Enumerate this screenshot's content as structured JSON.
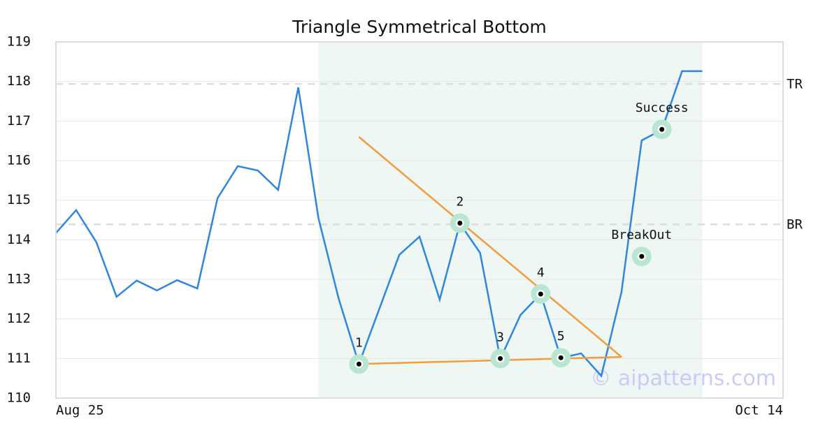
{
  "chart_data": {
    "type": "line",
    "title": "Triangle Symmetrical Bottom",
    "x": [
      0,
      1,
      2,
      3,
      4,
      5,
      6,
      7,
      8,
      9,
      10,
      11,
      12,
      13,
      14,
      15,
      16,
      17,
      18,
      19,
      20,
      21,
      22,
      23,
      24,
      25,
      26,
      27,
      28,
      29,
      30,
      31,
      32
    ],
    "series": [
      {
        "color": "#2e86de",
        "values": [
          114.17,
          114.75,
          113.94,
          112.56,
          112.97,
          112.72,
          112.98,
          112.77,
          115.05,
          115.86,
          115.75,
          115.26,
          117.85,
          114.54,
          112.51,
          110.86,
          112.24,
          113.62,
          114.08,
          112.49,
          114.41,
          113.67,
          110.99,
          112.1,
          112.63,
          111.01,
          111.13,
          110.56,
          112.68,
          116.51,
          116.78,
          118.26,
          118.26
        ]
      }
    ],
    "xlim": [
      0,
      36
    ],
    "xticks": [
      {
        "value": 0,
        "label": "Aug 25"
      },
      {
        "value": 36,
        "label": "Oct 14"
      }
    ],
    "ylim": [
      110,
      119
    ],
    "yticks": [
      110,
      111,
      112,
      113,
      114,
      115,
      116,
      117,
      118,
      119
    ],
    "grid": true,
    "shaded_region": {
      "x": [
        13,
        32
      ],
      "color": "#eef7f3"
    },
    "levels": [
      {
        "label": "TR",
        "value": 117.94
      },
      {
        "label": "BR",
        "value": 114.39
      }
    ],
    "trend_lines": [
      {
        "color": "#f39c3d",
        "x": [
          15,
          28
        ],
        "y": [
          116.6,
          111.04
        ]
      },
      {
        "color": "#f39c3d",
        "x": [
          15,
          28
        ],
        "y": [
          110.86,
          111.04
        ]
      }
    ],
    "points": [
      {
        "label": "1",
        "x": 15,
        "y": 110.86
      },
      {
        "label": "2",
        "x": 20,
        "y": 114.42
      },
      {
        "label": "3",
        "x": 22,
        "y": 111.0
      },
      {
        "label": "4",
        "x": 24,
        "y": 112.63
      },
      {
        "label": "5",
        "x": 25,
        "y": 111.02
      },
      {
        "label": "BreakOut",
        "x": 29,
        "y": 113.58
      },
      {
        "label": "Success",
        "x": 30,
        "y": 116.79
      }
    ],
    "watermark": "© aipatterns.com"
  }
}
